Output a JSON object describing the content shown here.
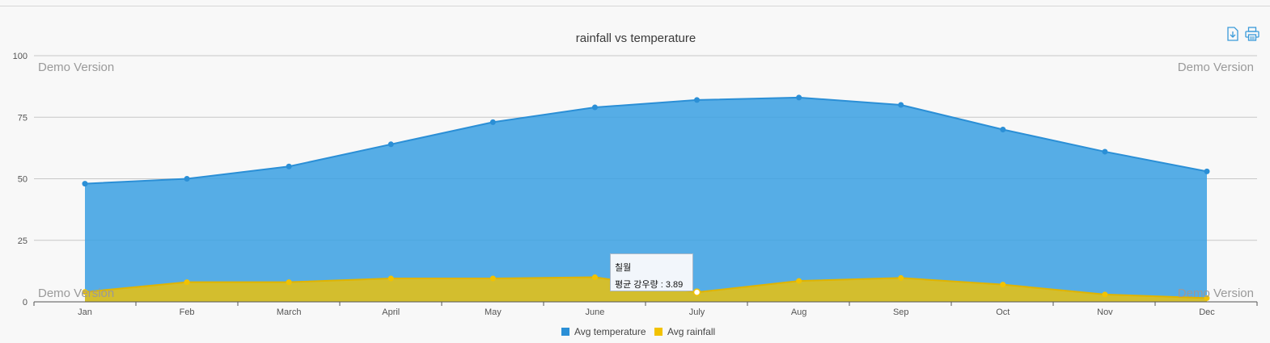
{
  "toolbar": {
    "download_icon": "download-icon",
    "print_icon": "print-icon",
    "icon_color": "#3a9ad9"
  },
  "watermark": "Demo Version",
  "tooltip": {
    "title": "칠월",
    "label": "평균 강우량 : 3.89"
  },
  "chart_data": {
    "type": "area",
    "title": "rainfall vs temperature",
    "xlabel": "",
    "ylabel": "",
    "categories": [
      "Jan",
      "Feb",
      "March",
      "April",
      "May",
      "June",
      "July",
      "Aug",
      "Sep",
      "Oct",
      "Nov",
      "Dec"
    ],
    "ylim": [
      0,
      100
    ],
    "yticks": [
      0,
      25,
      50,
      75,
      100
    ],
    "grid": true,
    "legend_position": "bottom-center",
    "series": [
      {
        "name": "Avg temperature",
        "color": "#3aa0e3",
        "values": [
          48,
          50,
          55,
          64,
          73,
          79,
          82,
          83,
          80,
          70,
          61,
          53
        ]
      },
      {
        "name": "Avg rainfall",
        "color": "#f2c200",
        "values": [
          4,
          8,
          8,
          9.5,
          9.5,
          10,
          3.89,
          8.5,
          9.7,
          7,
          3,
          1.5
        ]
      }
    ]
  }
}
